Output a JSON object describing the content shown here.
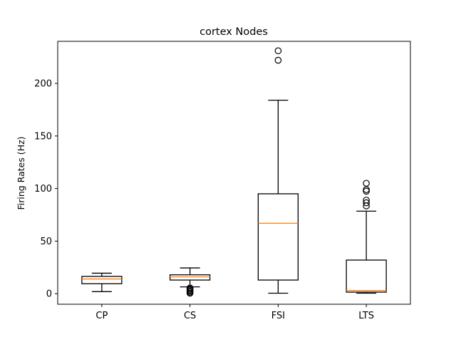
{
  "chart_data": {
    "type": "box",
    "title": "cortex Nodes",
    "xlabel": "",
    "ylabel": "Firing Rates (Hz)",
    "categories": [
      "CP",
      "CS",
      "FSI",
      "LTS"
    ],
    "ylim": [
      -10,
      240
    ],
    "yticks": [
      0,
      50,
      100,
      150,
      200
    ],
    "grid": false,
    "legend": "none",
    "boxes": [
      {
        "category": "CP",
        "whisker_low": 2,
        "q1": 9.5,
        "median": 14,
        "q3": 16.5,
        "whisker_high": 19.5,
        "outliers": []
      },
      {
        "category": "CS",
        "whisker_low": 6.5,
        "q1": 13,
        "median": 16,
        "q3": 18,
        "whisker_high": 24.5,
        "outliers": [
          0.5,
          1.5,
          2.5,
          3.5,
          4.5,
          5.5
        ]
      },
      {
        "category": "FSI",
        "whisker_low": 0.5,
        "q1": 13,
        "median": 67,
        "q3": 95,
        "whisker_high": 184,
        "outliers": [
          222,
          231
        ]
      },
      {
        "category": "LTS",
        "whisker_low": 0.5,
        "q1": 1.5,
        "median": 3,
        "q3": 32,
        "whisker_high": 78.5,
        "outliers": [
          83.5,
          86.5,
          89,
          97.5,
          99,
          105
        ]
      }
    ],
    "colors": {
      "box": "#000000",
      "median": "#ff7f0e",
      "outlier": "#000000"
    }
  }
}
